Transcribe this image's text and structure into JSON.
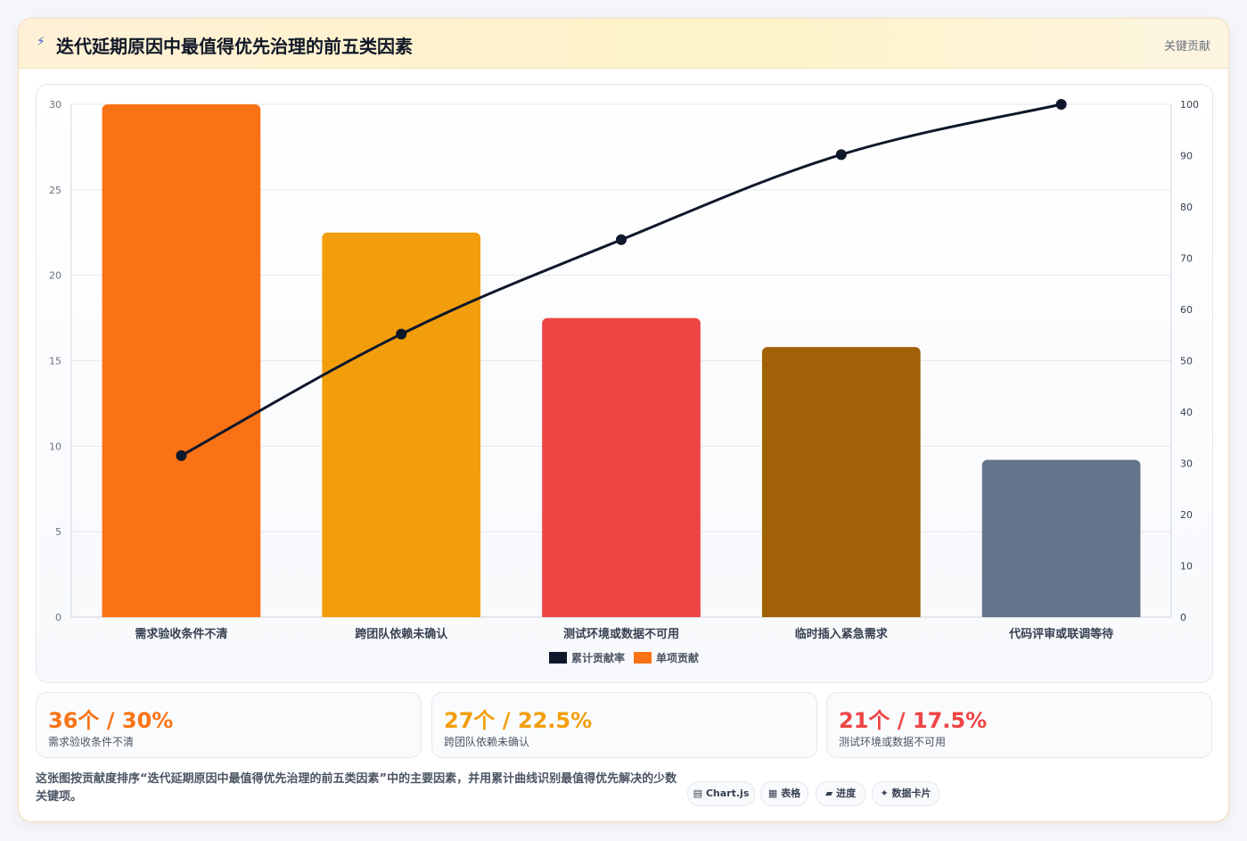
{
  "header": {
    "icon": "lightning-icon",
    "title": "迭代延期原因中最值得优先治理的前五类因素",
    "tag": "关键贡献"
  },
  "chart_data": {
    "type": "bar",
    "categories": [
      "需求验收条件不清",
      "跨团队依赖未确认",
      "测试环境或数据不可用",
      "临时插入紧急需求",
      "代码评审或联调等待"
    ],
    "series": [
      {
        "name": "单项贡献",
        "type": "bar",
        "axis": "left",
        "values": [
          30,
          22.5,
          17.5,
          15.8,
          9.2
        ]
      },
      {
        "name": "累计贡献率",
        "type": "line",
        "axis": "right",
        "values": [
          31.5,
          55.2,
          73.6,
          90.2,
          100
        ]
      }
    ],
    "bar_colors": [
      "#f97316",
      "#f29e0c",
      "#ef4444",
      "#a16207",
      "#64748b"
    ],
    "line_color": "#0f172a",
    "ylim": [
      0,
      30
    ],
    "y_ticks": [
      0,
      5,
      10,
      15,
      20,
      25,
      30
    ],
    "y2lim": [
      0,
      100
    ],
    "y2_ticks": [
      0,
      10,
      20,
      30,
      40,
      50,
      60,
      70,
      80,
      90,
      100
    ],
    "grid": true,
    "legend": "bottom",
    "legend_items": [
      {
        "label": "累计贡献率",
        "color": "#0f172a"
      },
      {
        "label": "单项贡献",
        "color": "#f97316"
      }
    ]
  },
  "stats": [
    {
      "value": "36个 / 30%",
      "label": "需求验收条件不清",
      "color": "#f97316"
    },
    {
      "value": "27个 / 22.5%",
      "label": "跨团队依赖未确认",
      "color": "#f29e0c"
    },
    {
      "value": "21个 / 17.5%",
      "label": "测试环境或数据不可用",
      "color": "#ef4444"
    }
  ],
  "description": "这张图按贡献度排序“迭代延期原因中最值得优先治理的前五类因素”中的主要因素，并用累计曲线识别最值得优先解决的少数关键项。",
  "chips": [
    {
      "icon": "window-icon",
      "glyph": "▤",
      "label": "Chart.js"
    },
    {
      "icon": "table-icon",
      "glyph": "▦",
      "label": "表格"
    },
    {
      "icon": "progress-icon",
      "glyph": "▰",
      "label": "进度"
    },
    {
      "icon": "sparkle-icon",
      "glyph": "✦",
      "label": "数据卡片"
    }
  ]
}
